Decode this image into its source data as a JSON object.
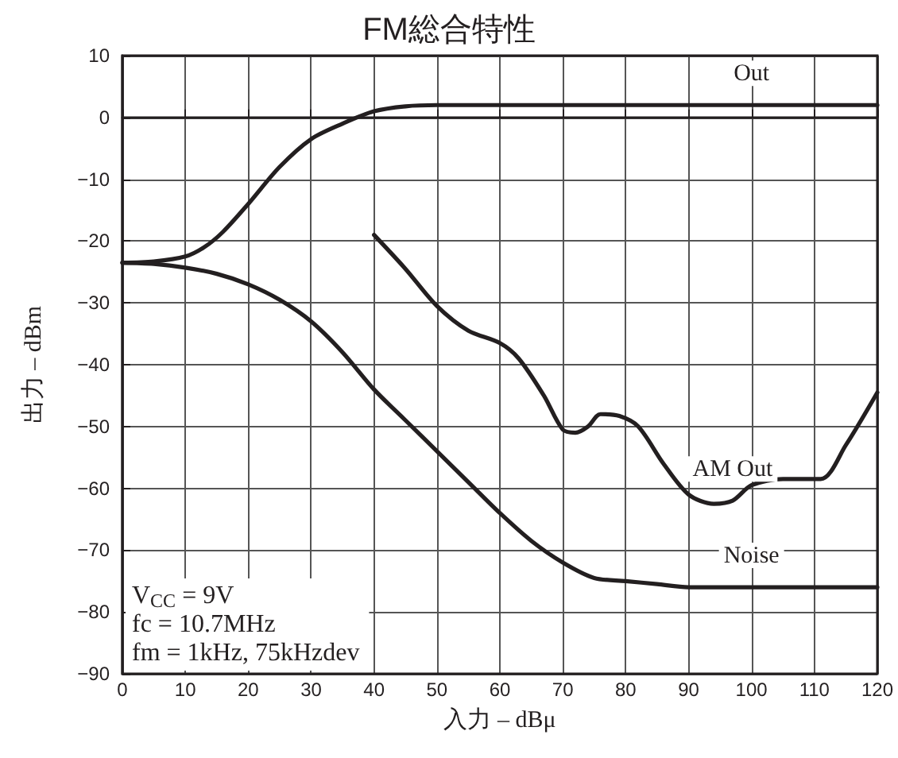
{
  "chart_data": {
    "type": "line",
    "title": "FM総合特性",
    "xlabel": "入力 – dBμ",
    "ylabel": "出力 – dBm",
    "xlim": [
      0,
      120
    ],
    "xticks": [
      0,
      10,
      20,
      30,
      40,
      50,
      60,
      70,
      80,
      90,
      100,
      110,
      120
    ],
    "ylim": [
      -90,
      10
    ],
    "yticks": [
      -90,
      -80,
      -70,
      -60,
      -50,
      -40,
      -30,
      -20,
      -10,
      0,
      10
    ],
    "grid": true,
    "legend": false,
    "marker": "none",
    "line_style": "solid",
    "annotations": [
      "V$_{CC}$ = 9V\nfc = 10.7MHz\nfm = 1kHz, 75kHzdev"
    ],
    "series": [
      {
        "name": "Out",
        "color": "#231f20",
        "x": [
          0,
          5,
          10,
          13,
          16,
          20,
          25,
          30,
          35,
          40,
          45,
          50,
          60,
          80,
          100,
          120
        ],
        "values": [
          -23.5,
          -23.3,
          -22.5,
          -21,
          -18.5,
          -14,
          -8,
          -3.5,
          -1,
          1,
          1.8,
          2,
          2,
          2,
          2,
          2
        ]
      },
      {
        "name": "AM Out",
        "color": "#231f20",
        "x": [
          40,
          45,
          50,
          55,
          60,
          63,
          67,
          70,
          72,
          74,
          76,
          79,
          82,
          86,
          90,
          94,
          97,
          100,
          105,
          111,
          115,
          120
        ],
        "values": [
          -19,
          -24.5,
          -30.5,
          -34.5,
          -36.5,
          -39,
          -45,
          -50.5,
          -51,
          -50,
          -48,
          -48.3,
          -50,
          -56,
          -61,
          -62.5,
          -62,
          -59.5,
          -58.5,
          -58.5,
          -53,
          -44.5
        ]
      },
      {
        "name": "Noise",
        "color": "#231f20",
        "x": [
          0,
          5,
          10,
          15,
          20,
          25,
          30,
          35,
          40,
          45,
          50,
          55,
          60,
          65,
          70,
          75,
          80,
          85,
          90,
          100,
          110,
          120
        ],
        "values": [
          -23.5,
          -23.7,
          -24.3,
          -25.3,
          -27,
          -29.5,
          -33,
          -38,
          -44,
          -49,
          -54,
          -59,
          -64,
          -68.5,
          -72,
          -74.5,
          -75,
          -75.5,
          -76,
          -76,
          -76,
          -76
        ]
      }
    ]
  }
}
